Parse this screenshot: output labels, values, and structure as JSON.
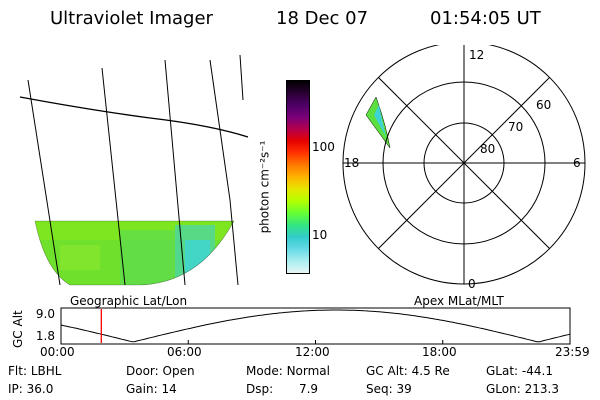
{
  "header": {
    "instrument": "Ultraviolet Imager",
    "date": "18 Dec 07",
    "time": "01:54:05 UT"
  },
  "colorbar": {
    "unit": "photon cm⁻²s⁻¹",
    "ticks": [
      "100",
      "10"
    ],
    "colors": [
      "#000000",
      "#2a0033",
      "#4d0066",
      "#7a007a",
      "#b3004d",
      "#e60000",
      "#ff3300",
      "#ff7a00",
      "#ffb300",
      "#e6e600",
      "#b3ff00",
      "#66ff33",
      "#33e680",
      "#33cccc",
      "#66d9e6",
      "#aaeef0",
      "#e6f5f5"
    ]
  },
  "geo_map": {
    "label": "Geographic Lat/Lon",
    "aurora_fill_levels": [
      "#7ee620",
      "#5ce040",
      "#4fd6a0",
      "#3fd4d4"
    ]
  },
  "polar_plot": {
    "label": "Apex MLat/MLT",
    "mlt_labels": [
      "12",
      "18",
      "6",
      "0"
    ],
    "lat_labels": [
      "60",
      "70",
      "80"
    ]
  },
  "alt_panel": {
    "axis_label": "GC Alt",
    "y_ticks": [
      "9.0",
      "1.8"
    ],
    "x_ticks": [
      "00:00",
      "06:00",
      "12:00",
      "18:00",
      "23:59"
    ],
    "current_time_hours": 1.9,
    "marker_color": "#ff0000"
  },
  "footer": {
    "row1": [
      {
        "label": "Flt:",
        "value": "LBHL"
      },
      {
        "label": "Door:",
        "value": "Open"
      },
      {
        "label": "Mode:",
        "value": "Normal"
      },
      {
        "label": "GC Alt:",
        "value": "4.5 Re"
      },
      {
        "label": "GLat:",
        "value": "-44.1"
      }
    ],
    "row2": [
      {
        "label": "IP:",
        "value": "36.0"
      },
      {
        "label": "Gain:",
        "value": "14"
      },
      {
        "label": "Dsp:",
        "value": "7.9"
      },
      {
        "label": "Seq:",
        "value": "39"
      },
      {
        "label": "GLon:",
        "value": "213.3"
      }
    ]
  }
}
